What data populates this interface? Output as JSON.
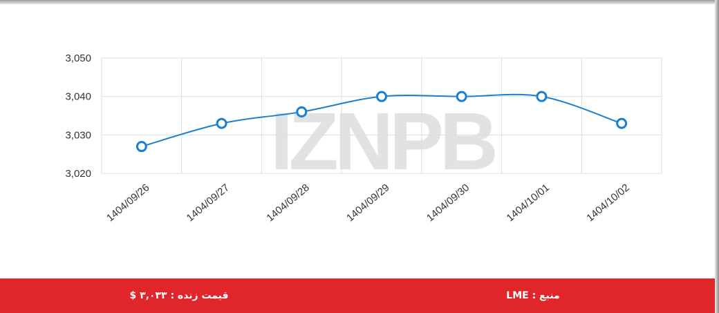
{
  "chart_data": {
    "type": "line",
    "categories": [
      "1404/09/26",
      "1404/09/27",
      "1404/09/28",
      "1404/09/29",
      "1404/09/30",
      "1404/10/01",
      "1404/10/02"
    ],
    "series": [
      {
        "color": "#1a7fd0",
        "values": [
          3027,
          3033,
          3036,
          3040,
          3040,
          3040,
          3033
        ]
      }
    ],
    "ylim": [
      3020,
      3050
    ],
    "yticks": [
      {
        "value": 3020,
        "label": "3,020"
      },
      {
        "value": 3030,
        "label": "3,030"
      },
      {
        "value": 3040,
        "label": "3,040"
      },
      {
        "value": 3050,
        "label": "3,050"
      }
    ],
    "grid": true,
    "watermark": "IZNPB"
  },
  "footer": {
    "live_price": "قیمت زنده : ۳,۰۳۳ $",
    "source": "منبع : LME"
  }
}
